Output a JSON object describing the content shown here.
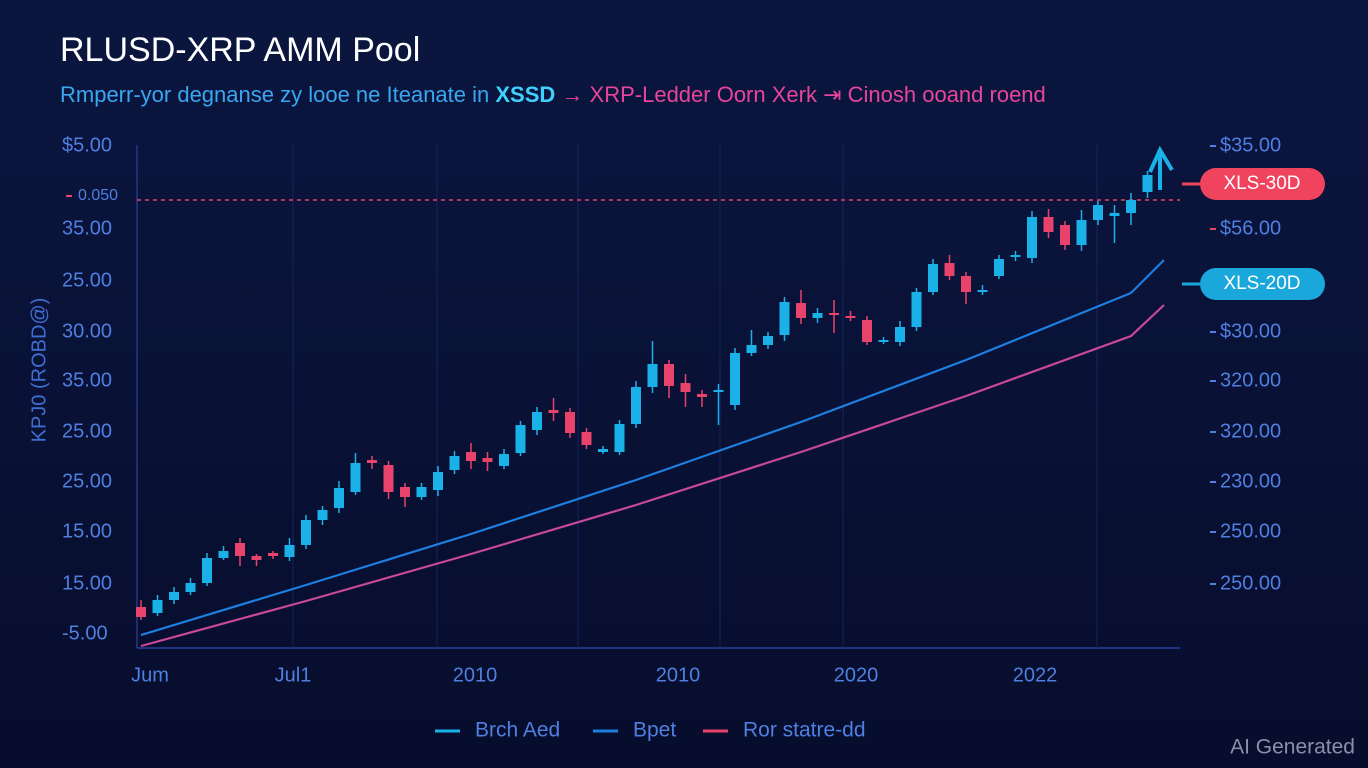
{
  "chart_data": {
    "type": "candlestick",
    "title": "RLUSD-XRP AMM Pool",
    "subtitle": [
      "Rmperr-yor degnanse zy looe ne Iteanate in",
      "XSSD",
      "→ XRP-Ledder Oorn Xerk ⇥ Cinosh ooand roend"
    ],
    "y_axis_label": "KPJ0 (ROBD@)",
    "left_axis_labels": [
      "$5.00",
      "35.00",
      "25.00",
      "30.00",
      "35.00",
      "25.00",
      "25.00",
      "15.00",
      "15.00",
      "-5.00"
    ],
    "right_axis_labels": [
      "$35.00",
      "$56.00",
      "$30.00",
      "320.00",
      "320.00",
      "230.00",
      "250.00",
      "250.00"
    ],
    "x_labels": [
      "Jum",
      "Jul1",
      "2010",
      "2010",
      "2020",
      "2022"
    ],
    "ylim": [
      0,
      100
    ],
    "xlim": [
      0,
      62
    ],
    "reference_line": {
      "value": 89.6,
      "color": "#e8436a",
      "label": "0.050"
    },
    "annotations": [
      {
        "text": "XLS-30D",
        "color": "#f0435e"
      },
      {
        "text": "XLS-20D",
        "color": "#1aa8dc"
      }
    ],
    "watermark": "AI Generated",
    "candles": {
      "name": "Brch Aed",
      "up_color": "#1ab0e8",
      "down_color": "#e8436a",
      "open": [
        8.2,
        7.0,
        9.6,
        11.2,
        13.0,
        18.0,
        21.0,
        18.4,
        19.0,
        18.2,
        20.6,
        25.6,
        28.0,
        31.2,
        37.6,
        36.6,
        32.2,
        30.2,
        31.6,
        35.6,
        39.2,
        38.0,
        36.4,
        39.0,
        43.6,
        47.6,
        47.2,
        43.2,
        39.2,
        39.2,
        44.8,
        52.2,
        56.8,
        53.0,
        50.8,
        51.2,
        48.6,
        59.0,
        60.6,
        62.6,
        69.0,
        66.0,
        67.0,
        66.4,
        65.6,
        61.2,
        61.2,
        64.2,
        71.2,
        77.0,
        74.4,
        71.2,
        74.4,
        78.2,
        78.0,
        86.2,
        84.6,
        80.6,
        85.6,
        86.4,
        87.0,
        91.2
      ],
      "high": [
        9.6,
        10.6,
        12.2,
        14.0,
        19.0,
        20.4,
        22.0,
        18.8,
        19.4,
        22.0,
        26.6,
        28.4,
        33.4,
        39.0,
        38.4,
        37.4,
        33.0,
        33.0,
        36.4,
        39.4,
        41.0,
        39.2,
        39.8,
        45.4,
        48.2,
        50.0,
        48.0,
        44.0,
        40.4,
        45.6,
        53.4,
        61.4,
        57.6,
        54.8,
        51.6,
        52.8,
        60.0,
        63.6,
        63.2,
        70.2,
        71.6,
        68.0,
        69.6,
        67.4,
        66.4,
        62.2,
        65.4,
        72.0,
        77.8,
        78.6,
        75.2,
        72.6,
        78.6,
        79.4,
        87.4,
        87.8,
        85.4,
        87.6,
        89.4,
        88.6,
        91.0,
        95.4
      ],
      "low": [
        5.6,
        6.4,
        8.8,
        10.6,
        12.4,
        17.6,
        16.4,
        16.4,
        17.8,
        17.4,
        19.8,
        24.6,
        27.0,
        30.6,
        35.8,
        29.8,
        28.2,
        29.6,
        30.4,
        34.8,
        35.8,
        35.4,
        35.8,
        38.4,
        42.6,
        45.4,
        42.0,
        39.8,
        38.8,
        38.6,
        44.0,
        51.0,
        50.0,
        48.2,
        48.2,
        44.6,
        47.6,
        58.4,
        59.8,
        61.4,
        64.8,
        65.0,
        63.0,
        65.4,
        60.6,
        60.8,
        60.4,
        63.4,
        70.6,
        73.6,
        68.8,
        70.6,
        73.8,
        77.4,
        77.0,
        82.0,
        79.6,
        79.4,
        84.6,
        81.0,
        84.6,
        90.0
      ],
      "close": [
        6.2,
        9.6,
        11.2,
        13.0,
        18.0,
        19.4,
        18.4,
        17.6,
        18.4,
        20.6,
        25.6,
        27.6,
        32.0,
        37.0,
        37.0,
        31.2,
        30.2,
        32.2,
        35.2,
        38.4,
        37.4,
        37.2,
        38.8,
        44.6,
        47.2,
        47.0,
        43.0,
        40.6,
        39.8,
        44.8,
        52.2,
        56.8,
        52.4,
        51.2,
        50.2,
        51.6,
        59.0,
        60.6,
        62.4,
        69.2,
        66.0,
        67.0,
        66.6,
        66.0,
        61.2,
        61.6,
        64.2,
        71.2,
        76.8,
        74.4,
        71.2,
        71.6,
        77.8,
        78.6,
        86.2,
        83.2,
        80.6,
        85.6,
        88.6,
        87.0,
        89.6,
        94.6
      ]
    },
    "series": [
      {
        "name": "Bpet",
        "color": "#1e7fe0",
        "x": [
          0,
          10,
          20,
          30,
          40,
          50,
          60,
          62
        ],
        "values": [
          2.6,
          12.6,
          22.8,
          33.6,
          45.2,
          57.6,
          71.0,
          77.6
        ]
      },
      {
        "name": "Ror statre-dd",
        "color": "#c8489a",
        "legend_color": "#e8436a",
        "x": [
          0,
          10,
          20,
          30,
          40,
          50,
          60,
          62
        ],
        "values": [
          0.4,
          9.4,
          18.8,
          28.6,
          39.2,
          50.4,
          62.4,
          68.6
        ]
      }
    ]
  }
}
